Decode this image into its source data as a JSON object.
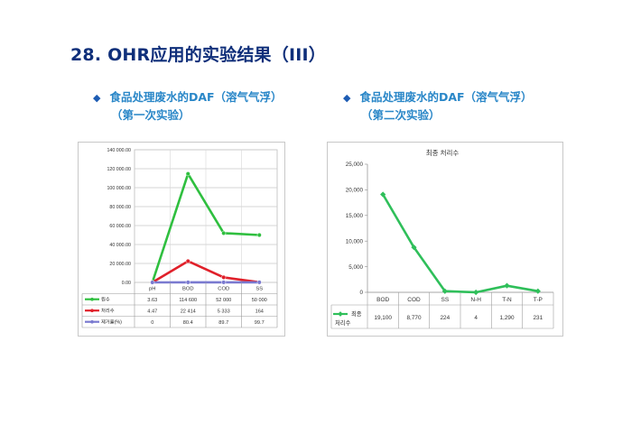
{
  "page": {
    "title": "28. OHR应用的实验结果（III）",
    "left_bullet_line1": "食品处理废水的DAF（溶气气浮）",
    "left_bullet_line2": "（第一次实验）",
    "right_bullet_line1": "食品处理废水的DAF（溶气气浮）",
    "right_bullet_line2": "（第二次实验）",
    "bullet_icon": "diamond-icon"
  },
  "chart_data": [
    {
      "type": "line",
      "title": "",
      "categories": [
        "pH",
        "BOD",
        "COD",
        "SS"
      ],
      "ylim": [
        0,
        140000
      ],
      "yticks": [
        "0.00",
        "20 000.00",
        "40 000.00",
        "60 000.00",
        "80 000.00",
        "100 000.00",
        "120 000.00",
        "140 000.00"
      ],
      "grid": true,
      "series": [
        {
          "name": "원수",
          "color": "#2fbf3f",
          "values": [
            3.63,
            114600,
            52000,
            50000
          ],
          "labels": [
            "3.63",
            "114 600",
            "52 000",
            "50 000"
          ]
        },
        {
          "name": "처리수",
          "color": "#e0202a",
          "values": [
            4.47,
            22414,
            5333,
            164
          ],
          "labels": [
            "4.47",
            "22 414",
            "5 333",
            "164"
          ]
        },
        {
          "name": "제거율(%)",
          "color": "#7a7ad0",
          "values": [
            0,
            80.4,
            89.7,
            99.7
          ],
          "labels": [
            "0",
            "80.4",
            "89.7",
            "99.7"
          ]
        }
      ]
    },
    {
      "type": "line",
      "title": "최종 처리수",
      "categories": [
        "BOD",
        "COD",
        "SS",
        "N-H",
        "T-N",
        "T-P"
      ],
      "ylim": [
        0,
        25000
      ],
      "yticks": [
        "0",
        "5,000",
        "10,000",
        "15,000",
        "20,000",
        "25,000"
      ],
      "grid": false,
      "series": [
        {
          "name": "최종 처리수",
          "color": "#2fbf5a",
          "values": [
            19100,
            8770,
            224,
            4,
            1290,
            231
          ],
          "labels": [
            "19,100",
            "8,770",
            "224",
            "4",
            "1,290",
            "231"
          ]
        }
      ]
    }
  ]
}
